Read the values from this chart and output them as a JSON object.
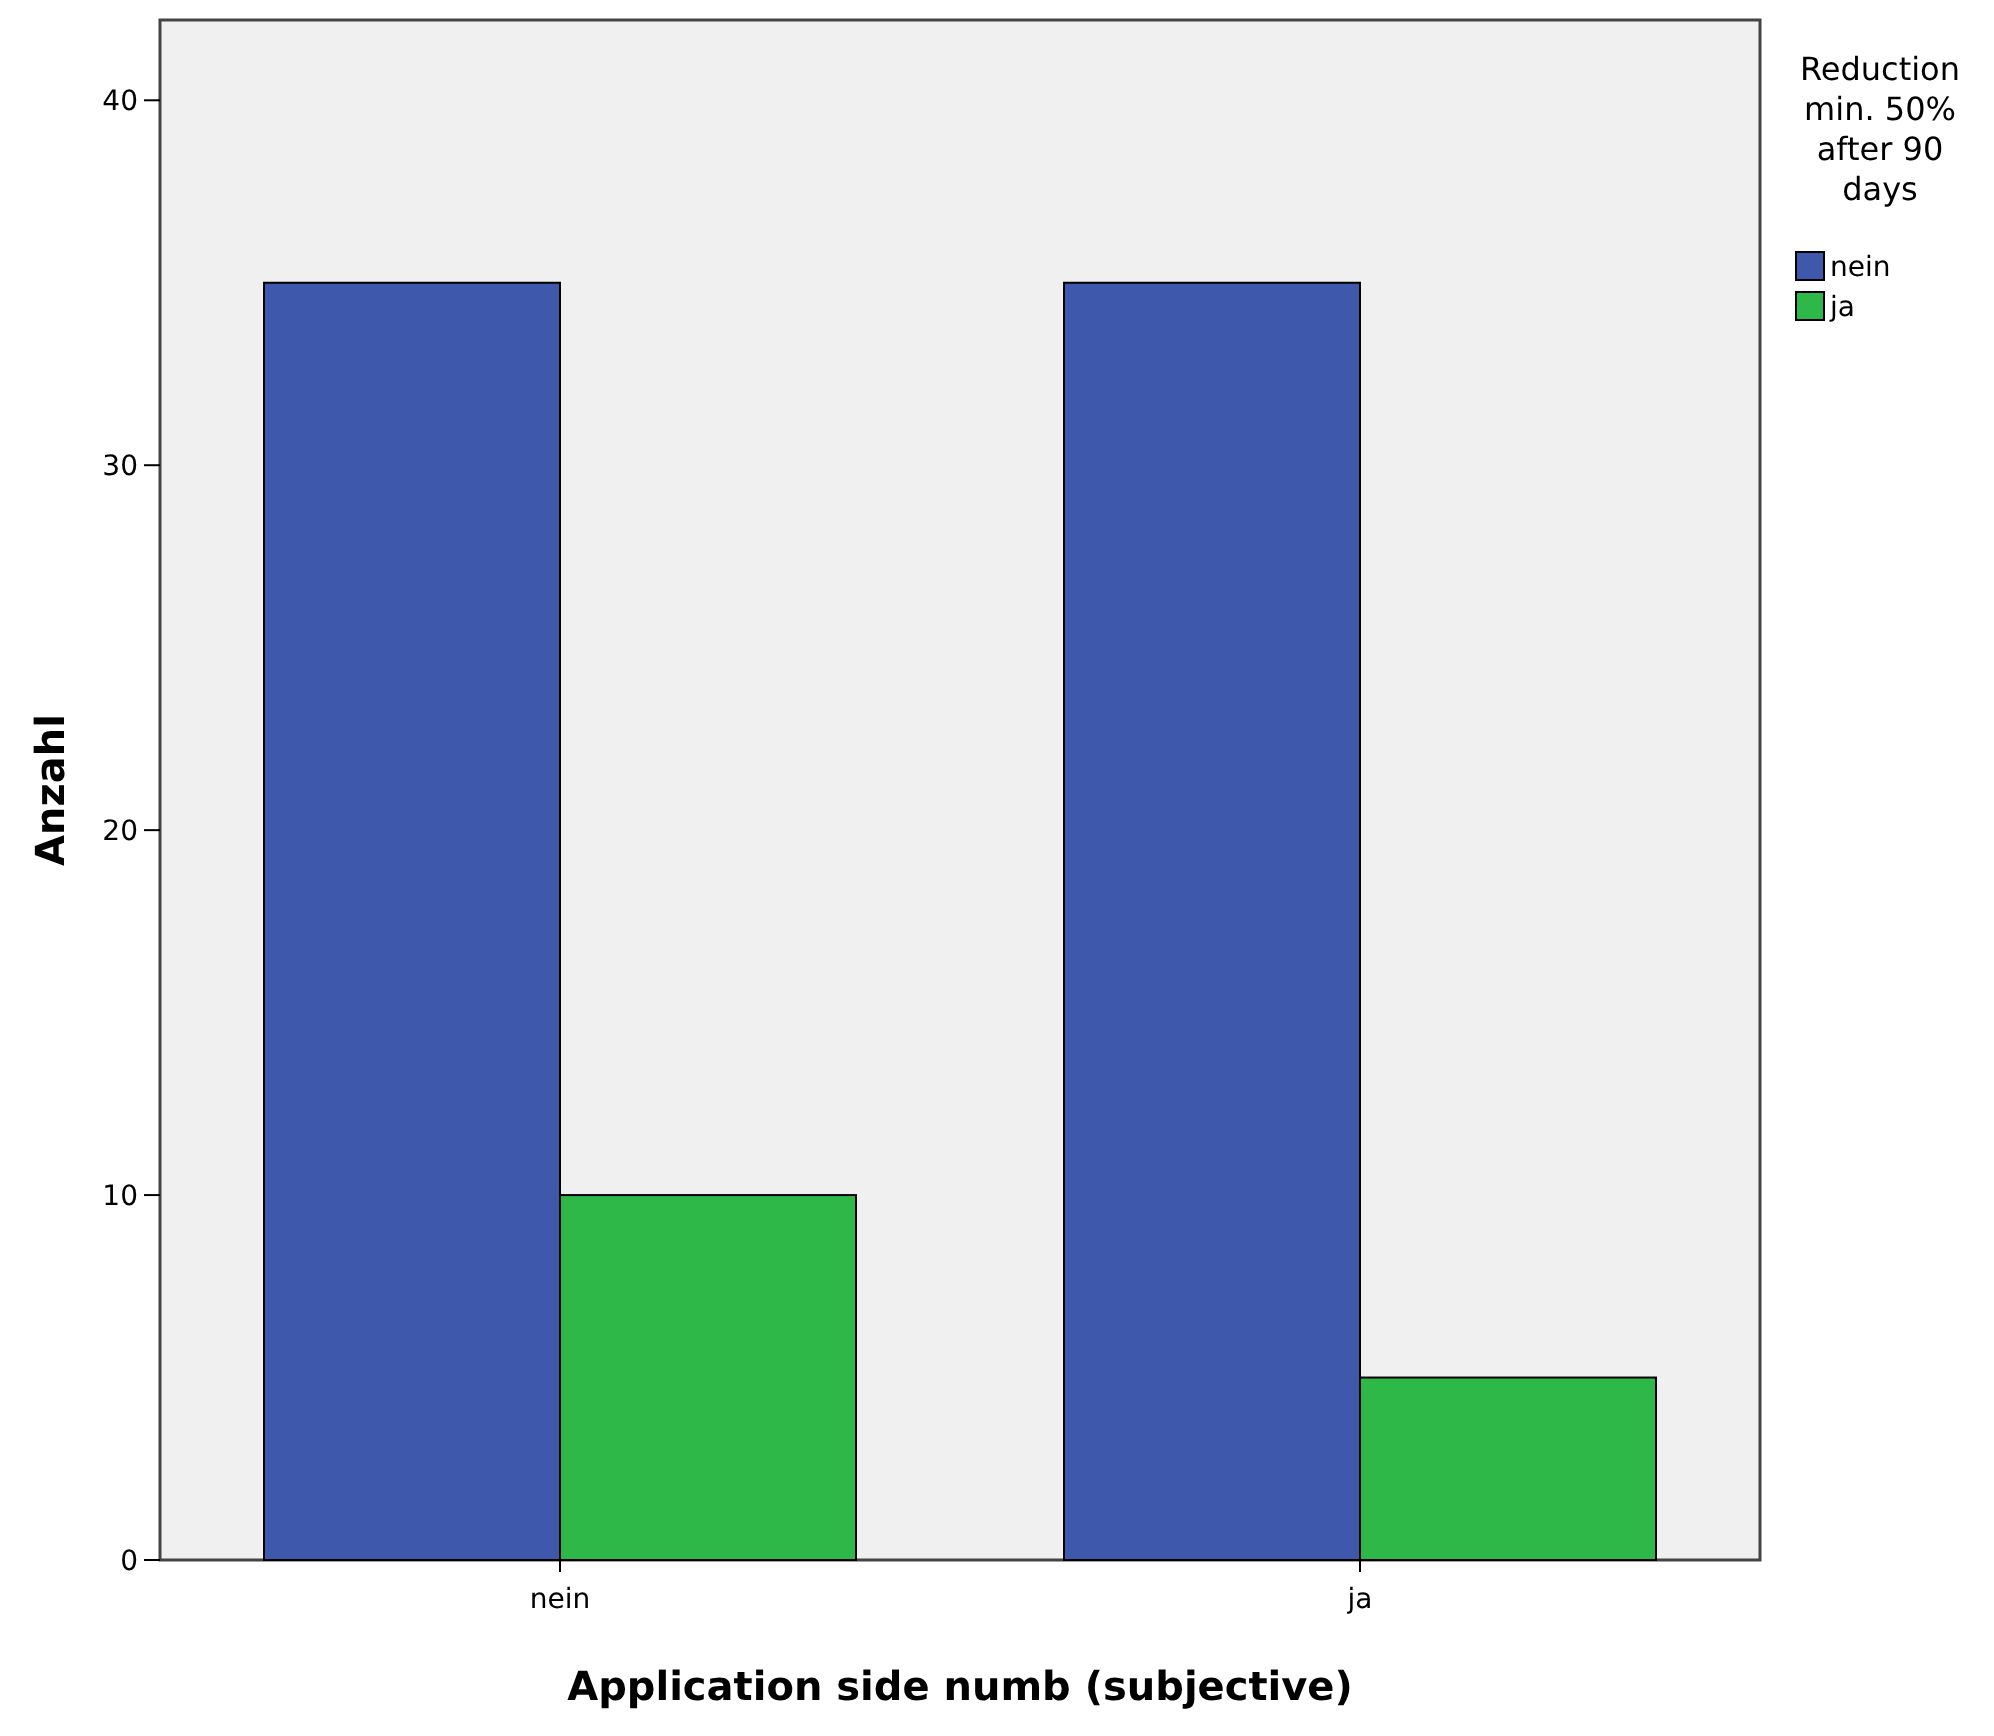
{
  "chart_data": {
    "type": "bar",
    "xlabel": "Application side numb (subjective)",
    "ylabel": "Anzahl",
    "legend_title": "Reduction min. 50% after 90 days",
    "categories": [
      "nein",
      "ja"
    ],
    "series": [
      {
        "name": "nein",
        "color": "#3e58ac",
        "values": [
          35,
          35
        ]
      },
      {
        "name": "ja",
        "color": "#2eb848",
        "values": [
          10,
          5
        ]
      }
    ],
    "ylim": [
      0,
      42.2
    ],
    "yticks": [
      0,
      10,
      20,
      30,
      40
    ],
    "grid": false,
    "legend": "right"
  }
}
